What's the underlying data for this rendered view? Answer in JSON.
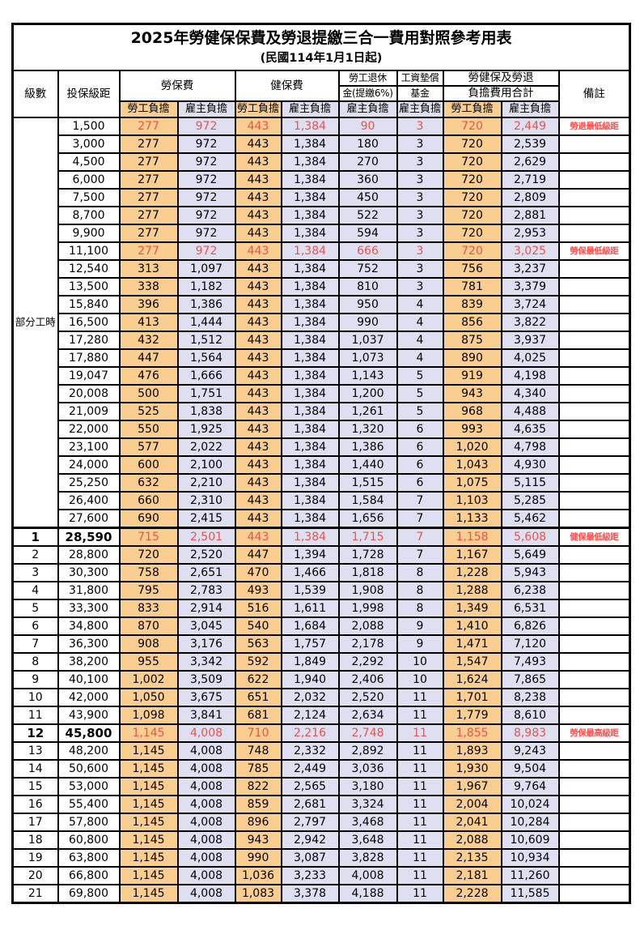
{
  "title": "2025年勞健保保費及勞退提繳三合一費用對照參考用表",
  "subtitle": "(民國114年1月1日起)",
  "headers": {
    "grade": "級數",
    "bracket": "投保級距",
    "labor_insurance": "勞保費",
    "health_insurance": "健保費",
    "pension_top": "勞工退休",
    "pension_bottom": "金(提繳6%)",
    "wage_fund_top": "工資墊償",
    "wage_fund_bottom": "基金",
    "total_top": "勞健保及勞退",
    "total_bottom": "負擔費用合計",
    "remark": "備註",
    "employee_burden": "勞工負擔",
    "employer_burden": "雇主負擔"
  },
  "part_time_label": "部分工時",
  "part_time_rowspan": 23,
  "colors": {
    "employee_bg": "#FACD91",
    "employer_bg": "#DEDFF1",
    "highlight_text": "#E8544C",
    "remark_text": "#FF4F4D"
  },
  "rows": [
    {
      "grade": "",
      "bracket": "1,500",
      "labor_emp": "277",
      "labor_er": "972",
      "health_emp": "443",
      "health_er": "1,384",
      "pension": "90",
      "fund": "3",
      "total_emp": "720",
      "total_er": "2,449",
      "remark": "勞退最低級距",
      "hl": true
    },
    {
      "grade": "",
      "bracket": "3,000",
      "labor_emp": "277",
      "labor_er": "972",
      "health_emp": "443",
      "health_er": "1,384",
      "pension": "180",
      "fund": "3",
      "total_emp": "720",
      "total_er": "2,539",
      "remark": ""
    },
    {
      "grade": "",
      "bracket": "4,500",
      "labor_emp": "277",
      "labor_er": "972",
      "health_emp": "443",
      "health_er": "1,384",
      "pension": "270",
      "fund": "3",
      "total_emp": "720",
      "total_er": "2,629",
      "remark": ""
    },
    {
      "grade": "",
      "bracket": "6,000",
      "labor_emp": "277",
      "labor_er": "972",
      "health_emp": "443",
      "health_er": "1,384",
      "pension": "360",
      "fund": "3",
      "total_emp": "720",
      "total_er": "2,719",
      "remark": ""
    },
    {
      "grade": "",
      "bracket": "7,500",
      "labor_emp": "277",
      "labor_er": "972",
      "health_emp": "443",
      "health_er": "1,384",
      "pension": "450",
      "fund": "3",
      "total_emp": "720",
      "total_er": "2,809",
      "remark": ""
    },
    {
      "grade": "",
      "bracket": "8,700",
      "labor_emp": "277",
      "labor_er": "972",
      "health_emp": "443",
      "health_er": "1,384",
      "pension": "522",
      "fund": "3",
      "total_emp": "720",
      "total_er": "2,881",
      "remark": ""
    },
    {
      "grade": "",
      "bracket": "9,900",
      "labor_emp": "277",
      "labor_er": "972",
      "health_emp": "443",
      "health_er": "1,384",
      "pension": "594",
      "fund": "3",
      "total_emp": "720",
      "total_er": "2,953",
      "remark": ""
    },
    {
      "grade": "",
      "bracket": "11,100",
      "labor_emp": "277",
      "labor_er": "972",
      "health_emp": "443",
      "health_er": "1,384",
      "pension": "666",
      "fund": "3",
      "total_emp": "720",
      "total_er": "3,025",
      "remark": "勞保最低級距",
      "hl": true
    },
    {
      "grade": "",
      "bracket": "12,540",
      "labor_emp": "313",
      "labor_er": "1,097",
      "health_emp": "443",
      "health_er": "1,384",
      "pension": "752",
      "fund": "3",
      "total_emp": "756",
      "total_er": "3,237",
      "remark": ""
    },
    {
      "grade": "",
      "bracket": "13,500",
      "labor_emp": "338",
      "labor_er": "1,182",
      "health_emp": "443",
      "health_er": "1,384",
      "pension": "810",
      "fund": "3",
      "total_emp": "781",
      "total_er": "3,379",
      "remark": ""
    },
    {
      "grade": "",
      "bracket": "15,840",
      "labor_emp": "396",
      "labor_er": "1,386",
      "health_emp": "443",
      "health_er": "1,384",
      "pension": "950",
      "fund": "4",
      "total_emp": "839",
      "total_er": "3,724",
      "remark": ""
    },
    {
      "grade": "",
      "bracket": "16,500",
      "labor_emp": "413",
      "labor_er": "1,444",
      "health_emp": "443",
      "health_er": "1,384",
      "pension": "990",
      "fund": "4",
      "total_emp": "856",
      "total_er": "3,822",
      "remark": ""
    },
    {
      "grade": "",
      "bracket": "17,280",
      "labor_emp": "432",
      "labor_er": "1,512",
      "health_emp": "443",
      "health_er": "1,384",
      "pension": "1,037",
      "fund": "4",
      "total_emp": "875",
      "total_er": "3,937",
      "remark": ""
    },
    {
      "grade": "",
      "bracket": "17,880",
      "labor_emp": "447",
      "labor_er": "1,564",
      "health_emp": "443",
      "health_er": "1,384",
      "pension": "1,073",
      "fund": "4",
      "total_emp": "890",
      "total_er": "4,025",
      "remark": ""
    },
    {
      "grade": "",
      "bracket": "19,047",
      "labor_emp": "476",
      "labor_er": "1,666",
      "health_emp": "443",
      "health_er": "1,384",
      "pension": "1,143",
      "fund": "5",
      "total_emp": "919",
      "total_er": "4,198",
      "remark": ""
    },
    {
      "grade": "",
      "bracket": "20,008",
      "labor_emp": "500",
      "labor_er": "1,751",
      "health_emp": "443",
      "health_er": "1,384",
      "pension": "1,200",
      "fund": "5",
      "total_emp": "943",
      "total_er": "4,340",
      "remark": ""
    },
    {
      "grade": "",
      "bracket": "21,009",
      "labor_emp": "525",
      "labor_er": "1,838",
      "health_emp": "443",
      "health_er": "1,384",
      "pension": "1,261",
      "fund": "5",
      "total_emp": "968",
      "total_er": "4,488",
      "remark": ""
    },
    {
      "grade": "",
      "bracket": "22,000",
      "labor_emp": "550",
      "labor_er": "1,925",
      "health_emp": "443",
      "health_er": "1,384",
      "pension": "1,320",
      "fund": "6",
      "total_emp": "993",
      "total_er": "4,635",
      "remark": ""
    },
    {
      "grade": "",
      "bracket": "23,100",
      "labor_emp": "577",
      "labor_er": "2,022",
      "health_emp": "443",
      "health_er": "1,384",
      "pension": "1,386",
      "fund": "6",
      "total_emp": "1,020",
      "total_er": "4,798",
      "remark": ""
    },
    {
      "grade": "",
      "bracket": "24,000",
      "labor_emp": "600",
      "labor_er": "2,100",
      "health_emp": "443",
      "health_er": "1,384",
      "pension": "1,440",
      "fund": "6",
      "total_emp": "1,043",
      "total_er": "4,930",
      "remark": ""
    },
    {
      "grade": "",
      "bracket": "25,250",
      "labor_emp": "632",
      "labor_er": "2,210",
      "health_emp": "443",
      "health_er": "1,384",
      "pension": "1,515",
      "fund": "6",
      "total_emp": "1,075",
      "total_er": "5,115",
      "remark": ""
    },
    {
      "grade": "",
      "bracket": "26,400",
      "labor_emp": "660",
      "labor_er": "2,310",
      "health_emp": "443",
      "health_er": "1,384",
      "pension": "1,584",
      "fund": "7",
      "total_emp": "1,103",
      "total_er": "5,285",
      "remark": ""
    },
    {
      "grade": "",
      "bracket": "27,600",
      "labor_emp": "690",
      "labor_er": "2,415",
      "health_emp": "443",
      "health_er": "1,384",
      "pension": "1,656",
      "fund": "7",
      "total_emp": "1,133",
      "total_er": "5,462",
      "remark": ""
    },
    {
      "grade": "1",
      "bracket": "28,590",
      "labor_emp": "715",
      "labor_er": "2,501",
      "health_emp": "443",
      "health_er": "1,384",
      "pension": "1,715",
      "fund": "7",
      "total_emp": "1,158",
      "total_er": "5,608",
      "remark": "健保最低級距",
      "hl": true,
      "big": true,
      "sep": true
    },
    {
      "grade": "2",
      "bracket": "28,800",
      "labor_emp": "720",
      "labor_er": "2,520",
      "health_emp": "447",
      "health_er": "1,394",
      "pension": "1,728",
      "fund": "7",
      "total_emp": "1,167",
      "total_er": "5,649",
      "remark": ""
    },
    {
      "grade": "3",
      "bracket": "30,300",
      "labor_emp": "758",
      "labor_er": "2,651",
      "health_emp": "470",
      "health_er": "1,466",
      "pension": "1,818",
      "fund": "8",
      "total_emp": "1,228",
      "total_er": "5,943",
      "remark": ""
    },
    {
      "grade": "4",
      "bracket": "31,800",
      "labor_emp": "795",
      "labor_er": "2,783",
      "health_emp": "493",
      "health_er": "1,539",
      "pension": "1,908",
      "fund": "8",
      "total_emp": "1,288",
      "total_er": "6,238",
      "remark": ""
    },
    {
      "grade": "5",
      "bracket": "33,300",
      "labor_emp": "833",
      "labor_er": "2,914",
      "health_emp": "516",
      "health_er": "1,611",
      "pension": "1,998",
      "fund": "8",
      "total_emp": "1,349",
      "total_er": "6,531",
      "remark": ""
    },
    {
      "grade": "6",
      "bracket": "34,800",
      "labor_emp": "870",
      "labor_er": "3,045",
      "health_emp": "540",
      "health_er": "1,684",
      "pension": "2,088",
      "fund": "9",
      "total_emp": "1,410",
      "total_er": "6,826",
      "remark": ""
    },
    {
      "grade": "7",
      "bracket": "36,300",
      "labor_emp": "908",
      "labor_er": "3,176",
      "health_emp": "563",
      "health_er": "1,757",
      "pension": "2,178",
      "fund": "9",
      "total_emp": "1,471",
      "total_er": "7,120",
      "remark": ""
    },
    {
      "grade": "8",
      "bracket": "38,200",
      "labor_emp": "955",
      "labor_er": "3,342",
      "health_emp": "592",
      "health_er": "1,849",
      "pension": "2,292",
      "fund": "10",
      "total_emp": "1,547",
      "total_er": "7,493",
      "remark": ""
    },
    {
      "grade": "9",
      "bracket": "40,100",
      "labor_emp": "1,002",
      "labor_er": "3,509",
      "health_emp": "622",
      "health_er": "1,940",
      "pension": "2,406",
      "fund": "10",
      "total_emp": "1,624",
      "total_er": "7,865",
      "remark": ""
    },
    {
      "grade": "10",
      "bracket": "42,000",
      "labor_emp": "1,050",
      "labor_er": "3,675",
      "health_emp": "651",
      "health_er": "2,032",
      "pension": "2,520",
      "fund": "11",
      "total_emp": "1,701",
      "total_er": "8,238",
      "remark": ""
    },
    {
      "grade": "11",
      "bracket": "43,900",
      "labor_emp": "1,098",
      "labor_er": "3,841",
      "health_emp": "681",
      "health_er": "2,124",
      "pension": "2,634",
      "fund": "11",
      "total_emp": "1,779",
      "total_er": "8,610",
      "remark": ""
    },
    {
      "grade": "12",
      "bracket": "45,800",
      "labor_emp": "1,145",
      "labor_er": "4,008",
      "health_emp": "710",
      "health_er": "2,216",
      "pension": "2,748",
      "fund": "11",
      "total_emp": "1,855",
      "total_er": "8,983",
      "remark": "勞保最高級距",
      "hl": true,
      "big": true
    },
    {
      "grade": "13",
      "bracket": "48,200",
      "labor_emp": "1,145",
      "labor_er": "4,008",
      "health_emp": "748",
      "health_er": "2,332",
      "pension": "2,892",
      "fund": "11",
      "total_emp": "1,893",
      "total_er": "9,243",
      "remark": ""
    },
    {
      "grade": "14",
      "bracket": "50,600",
      "labor_emp": "1,145",
      "labor_er": "4,008",
      "health_emp": "785",
      "health_er": "2,449",
      "pension": "3,036",
      "fund": "11",
      "total_emp": "1,930",
      "total_er": "9,504",
      "remark": ""
    },
    {
      "grade": "15",
      "bracket": "53,000",
      "labor_emp": "1,145",
      "labor_er": "4,008",
      "health_emp": "822",
      "health_er": "2,565",
      "pension": "3,180",
      "fund": "11",
      "total_emp": "1,967",
      "total_er": "9,764",
      "remark": ""
    },
    {
      "grade": "16",
      "bracket": "55,400",
      "labor_emp": "1,145",
      "labor_er": "4,008",
      "health_emp": "859",
      "health_er": "2,681",
      "pension": "3,324",
      "fund": "11",
      "total_emp": "2,004",
      "total_er": "10,024",
      "remark": ""
    },
    {
      "grade": "17",
      "bracket": "57,800",
      "labor_emp": "1,145",
      "labor_er": "4,008",
      "health_emp": "896",
      "health_er": "2,797",
      "pension": "3,468",
      "fund": "11",
      "total_emp": "2,041",
      "total_er": "10,284",
      "remark": ""
    },
    {
      "grade": "18",
      "bracket": "60,800",
      "labor_emp": "1,145",
      "labor_er": "4,008",
      "health_emp": "943",
      "health_er": "2,942",
      "pension": "3,648",
      "fund": "11",
      "total_emp": "2,088",
      "total_er": "10,609",
      "remark": ""
    },
    {
      "grade": "19",
      "bracket": "63,800",
      "labor_emp": "1,145",
      "labor_er": "4,008",
      "health_emp": "990",
      "health_er": "3,087",
      "pension": "3,828",
      "fund": "11",
      "total_emp": "2,135",
      "total_er": "10,934",
      "remark": ""
    },
    {
      "grade": "20",
      "bracket": "66,800",
      "labor_emp": "1,145",
      "labor_er": "4,008",
      "health_emp": "1,036",
      "health_er": "3,233",
      "pension": "4,008",
      "fund": "11",
      "total_emp": "2,181",
      "total_er": "11,260",
      "remark": ""
    },
    {
      "grade": "21",
      "bracket": "69,800",
      "labor_emp": "1,145",
      "labor_er": "4,008",
      "health_emp": "1,083",
      "health_er": "3,378",
      "pension": "4,188",
      "fund": "11",
      "total_emp": "2,228",
      "total_er": "11,585",
      "remark": ""
    }
  ]
}
